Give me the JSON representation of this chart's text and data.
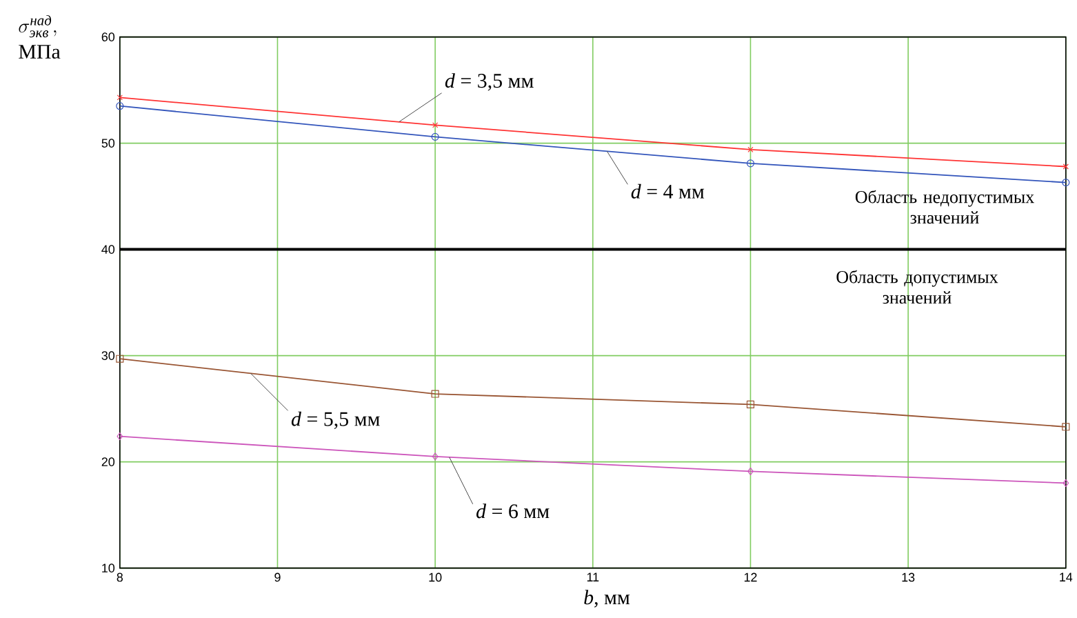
{
  "chart_data": {
    "type": "line",
    "xlabel": "*b*, мм",
    "ylabel": "\\begin{array}{l}\\sigma^{\\mathit{над}}_{\\mathit{экв}},\\\\ \\mathrm{МПа}\\end{array}",
    "x": [
      8,
      10,
      12,
      14
    ],
    "xlim": [
      8,
      14
    ],
    "xticks": [
      8,
      9,
      10,
      11,
      12,
      13,
      14
    ],
    "ylim": [
      10,
      60
    ],
    "yticks": [
      10,
      20,
      30,
      40,
      50,
      60
    ],
    "grid": true,
    "legend": false,
    "series": [
      {
        "name": "*d* = 3,5 мм",
        "color": "#ff3333",
        "marker": "cross",
        "values": [
          54.3,
          51.7,
          49.4,
          47.8
        ]
      },
      {
        "name": "*d* = 4 мм",
        "color": "#3355bb",
        "marker": "circle",
        "values": [
          53.5,
          50.6,
          48.1,
          46.3
        ]
      },
      {
        "name": "*d* = 5,5 мм",
        "color": "#995533",
        "marker": "square",
        "values": [
          29.7,
          26.4,
          25.4,
          23.3
        ]
      },
      {
        "name": "*d* = 6 мм",
        "color": "#cc55bb",
        "marker": "diamond",
        "values": [
          22.4,
          20.5,
          19.1,
          18.0
        ]
      }
    ],
    "ref_lines": [
      {
        "axis": "y",
        "value": 40,
        "color": "#000000"
      }
    ],
    "annotations": [
      "Область недопустимых значений",
      "Область допустимых значений"
    ]
  }
}
